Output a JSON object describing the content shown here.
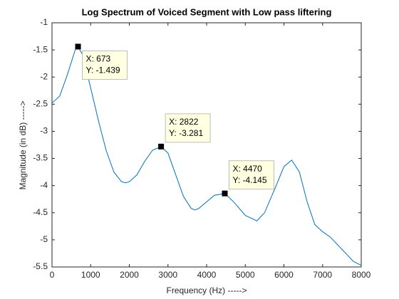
{
  "chart_data": {
    "type": "line",
    "title": "Log Spectrum of Voiced Segment with Low pass liftering",
    "x_label": "Frequency (Hz) ----->",
    "y_label": "Magnitude (in dB) ----->",
    "x": [
      0,
      200,
      400,
      600,
      673,
      800,
      1000,
      1200,
      1400,
      1600,
      1800,
      1900,
      2000,
      2200,
      2400,
      2600,
      2822,
      3000,
      3200,
      3400,
      3600,
      3700,
      3800,
      4000,
      4200,
      4470,
      4700,
      5000,
      5300,
      5500,
      5800,
      6000,
      6200,
      6400,
      6600,
      6800,
      7000,
      7200,
      7400,
      7600,
      7800,
      8000
    ],
    "series": [
      {
        "color": "#0072bd",
        "values": [
          -2.48,
          -2.35,
          -1.95,
          -1.5,
          -1.439,
          -1.6,
          -2.2,
          -2.8,
          -3.35,
          -3.75,
          -3.93,
          -3.95,
          -3.93,
          -3.8,
          -3.55,
          -3.35,
          -3.281,
          -3.4,
          -3.8,
          -4.2,
          -4.42,
          -4.45,
          -4.42,
          -4.3,
          -4.18,
          -4.145,
          -4.3,
          -4.55,
          -4.65,
          -4.5,
          -4.0,
          -3.65,
          -3.53,
          -3.75,
          -4.3,
          -4.72,
          -4.85,
          -4.95,
          -5.1,
          -5.25,
          -5.4,
          -5.47
        ]
      }
    ],
    "xlim": [
      0,
      8000
    ],
    "xticks": [
      0,
      1000,
      2000,
      3000,
      4000,
      5000,
      6000,
      7000,
      8000
    ],
    "ylim": [
      -5.5,
      -1
    ],
    "yticks": [
      -1,
      -1.5,
      -2,
      -2.5,
      -3,
      -3.5,
      -4,
      -4.5,
      -5,
      -5.5
    ],
    "grid": false,
    "datatips": [
      {
        "x": 673,
        "y": -1.439,
        "labels": [
          "X: 673",
          "Y: -1.439"
        ]
      },
      {
        "x": 2822,
        "y": -3.281,
        "labels": [
          "X: 2822",
          "Y: -3.281"
        ]
      },
      {
        "x": 4470,
        "y": -4.145,
        "labels": [
          "X: 4470",
          "Y: -4.145"
        ]
      }
    ]
  }
}
